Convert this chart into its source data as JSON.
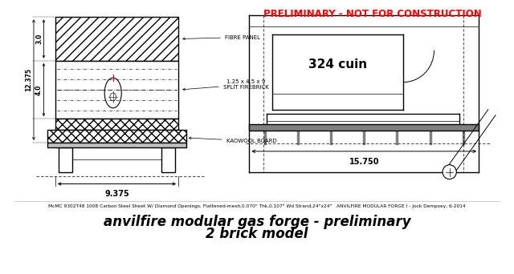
{
  "bg_color": "#ffffff",
  "title_line1": "anvilfire modular gas forge - preliminary",
  "title_line2": "2 brick model",
  "title_fontsize": 12,
  "preliminary_text": "PRELIMINARY - NOT FOR CONSTRUCTION",
  "preliminary_color": "#ff0000",
  "preliminary_fontsize": 8.5,
  "footnote": "McMC 9302T48 1008 Carbon Steel Sheet W/ Diamond Openings, Flattened-mesh,0.070\" Thk,0.107\" Wd Strand,24\"x24\"   ANVILFIRE MODULAR FORGE I - Jock Dempsey, 6-2014",
  "footnote_fontsize": 4.2,
  "dim_9375": "9.375",
  "dim_15750": "15.750",
  "dim_3": "3.0",
  "dim_4": "4.0",
  "dim_12375": "12.375",
  "label_fibre": "FIBRE PANEL",
  "label_brick": "1.25 x 4.5 x 9\nSPLIT FIREBRICK",
  "label_kaowool": "KAOWOOL BOARD",
  "label_324": "324 cuin"
}
